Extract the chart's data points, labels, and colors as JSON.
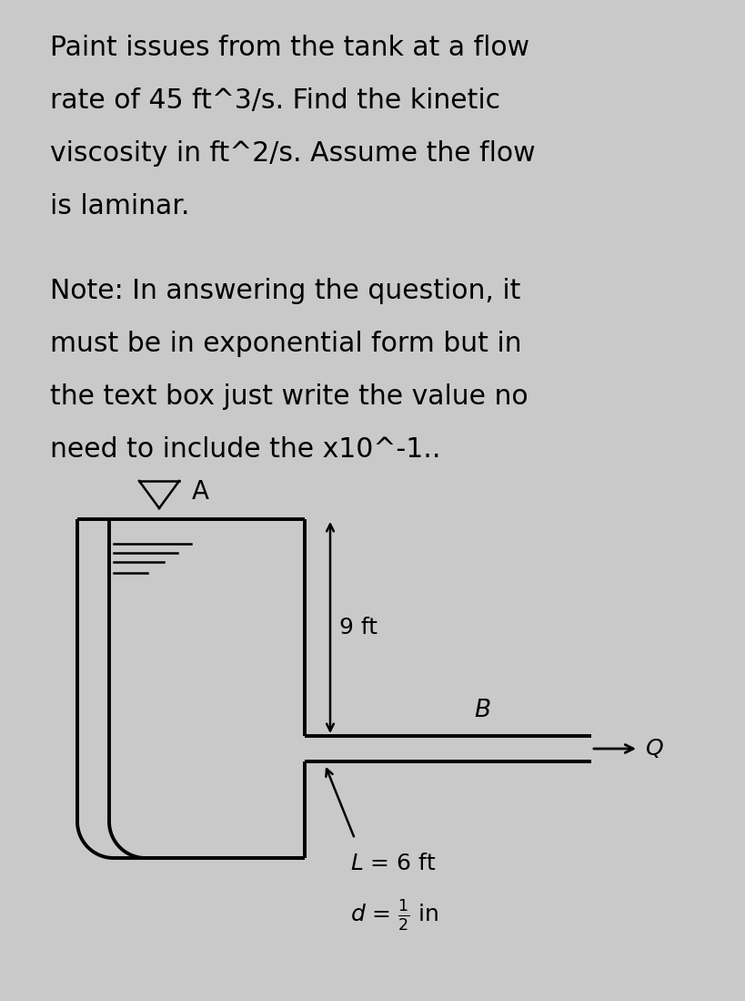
{
  "background_color": "#c9c9c9",
  "text_block": [
    "Paint issues from the tank at a flow",
    "rate of 45 ft^3/s. Find the kinetic",
    "viscosity in ft^2/s. Assume the flow",
    "is laminar."
  ],
  "note_block": [
    "Note: In answering the question, it",
    "must be in exponential form but in",
    "the text box just write the value no",
    "need to include the x10^-1.."
  ],
  "label_9ft": "9 ft",
  "label_L": "L = 6 ft",
  "label_d": "d=",
  "label_A": "A",
  "label_B": "B",
  "label_Q": "Q"
}
